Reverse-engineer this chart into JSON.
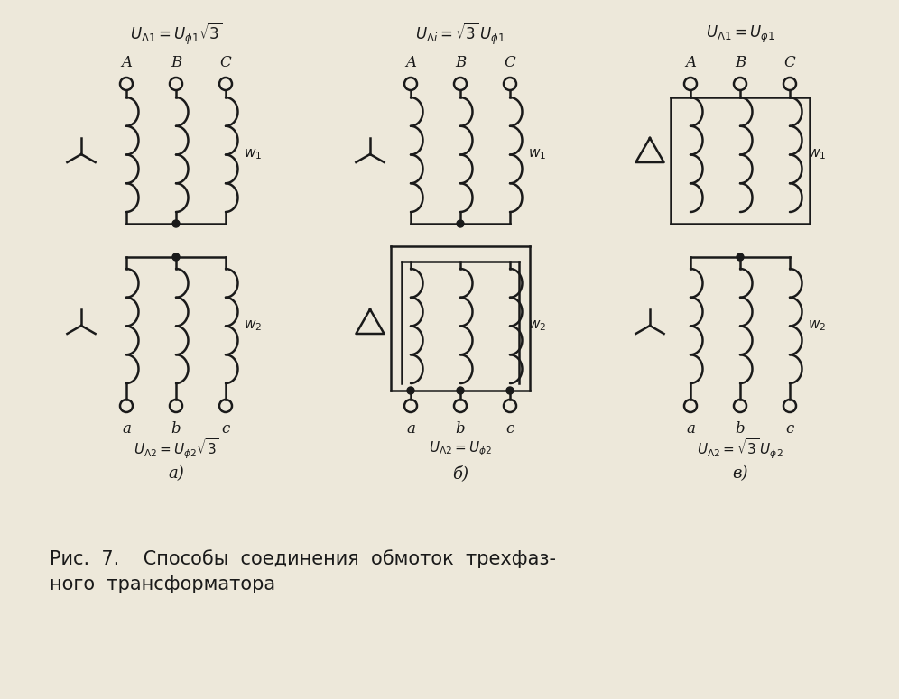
{
  "bg_color": "#ede8da",
  "line_color": "#1a1a1a",
  "panel_a_top_formula": "U_{Λ1} = U_{φ1}√3",
  "panel_b_top_formula": "U_{Λi} = √3 U_{φ1}",
  "panel_c_top_formula": "U_{Λ1} = U_{φ1}",
  "panel_a_bot_formula": "U_{Λ2} = U_{φ2}√3",
  "panel_b_bot_formula": "U_{Λ2} = U_{φ2}",
  "panel_c_bot_formula": "U_{Λ2} = √3 U_{φ2}",
  "label_a": "а)",
  "label_b": "б)",
  "label_c": "в)",
  "caption_line1": "Рис.  7.    Способы  соединения  обмоток  трехфаз-",
  "caption_line2": "ного  трансформатора"
}
